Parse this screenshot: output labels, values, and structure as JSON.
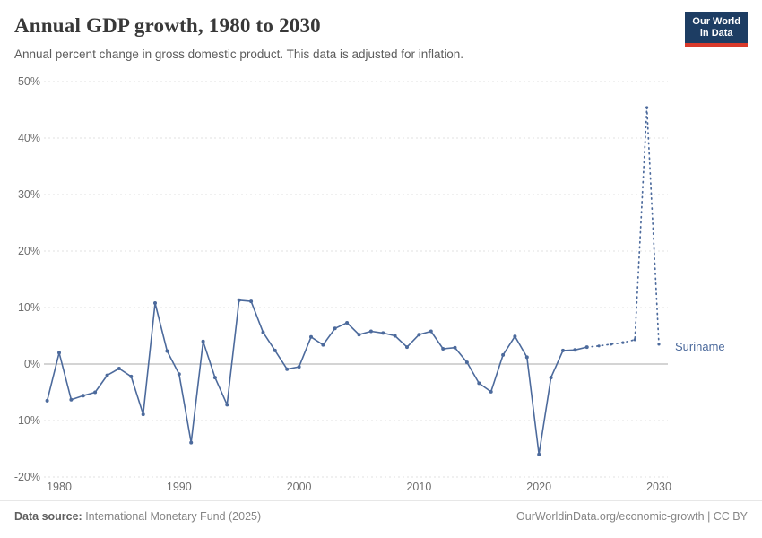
{
  "header": {
    "title": "Annual GDP growth, 1980 to 2030",
    "subtitle": "Annual percent change in gross domestic product. This data is adjusted for inflation.",
    "logo": {
      "line1": "Our World",
      "line2": "in Data"
    }
  },
  "chart_data": {
    "type": "line",
    "title": "Annual GDP growth, 1980 to 2030",
    "entity": "Suriname",
    "series_label": "Suriname",
    "x": [
      1979,
      1980,
      1981,
      1982,
      1983,
      1984,
      1985,
      1986,
      1987,
      1988,
      1989,
      1990,
      1991,
      1992,
      1993,
      1994,
      1995,
      1996,
      1997,
      1998,
      1999,
      2000,
      2001,
      2002,
      2003,
      2004,
      2005,
      2006,
      2007,
      2008,
      2009,
      2010,
      2011,
      2012,
      2013,
      2014,
      2015,
      2016,
      2017,
      2018,
      2019,
      2020,
      2021,
      2022,
      2023,
      2024,
      2025,
      2026,
      2027,
      2028,
      2029,
      2030
    ],
    "values": [
      -6.5,
      2.0,
      -6.3,
      -5.6,
      -5.0,
      -2.0,
      -0.8,
      -2.2,
      -8.9,
      10.8,
      2.3,
      -1.8,
      -13.9,
      4.0,
      -2.4,
      -7.2,
      11.3,
      11.1,
      5.6,
      2.4,
      -0.9,
      -0.5,
      4.8,
      3.4,
      6.3,
      7.3,
      5.2,
      5.8,
      5.5,
      5.0,
      3.0,
      5.2,
      5.8,
      2.7,
      2.9,
      0.3,
      -3.4,
      -4.9,
      1.6,
      4.9,
      1.2,
      -16.0,
      -2.4,
      2.4,
      2.5,
      3.0,
      3.2,
      3.5,
      3.8,
      4.3,
      45.4,
      3.5
    ],
    "projection_start_year": 2024,
    "ylim": [
      -20,
      50
    ],
    "xlim": [
      1979,
      2031
    ],
    "yticks": [
      -20,
      -10,
      0,
      10,
      20,
      30,
      40,
      50
    ],
    "ytick_labels": [
      "-20%",
      "-10%",
      "0%",
      "10%",
      "20%",
      "30%",
      "40%",
      "50%"
    ],
    "xticks": [
      1980,
      1990,
      2000,
      2010,
      2020,
      2030
    ],
    "xtick_labels": [
      "1980",
      "1990",
      "2000",
      "2010",
      "2020",
      "2030"
    ],
    "grid": "dashed horizontal, solid zero line",
    "legend_position": "end-of-line label",
    "line_color": "#4c6a9c",
    "grid_color": "#e0e0e0",
    "zero_line_color": "#a8a8a8",
    "tick_label_color": "#6e6e6e"
  },
  "footer": {
    "source_label": "Data source:",
    "source": " International Monetary Fund (2025)",
    "right": "OurWorldinData.org/economic-growth | CC BY"
  }
}
